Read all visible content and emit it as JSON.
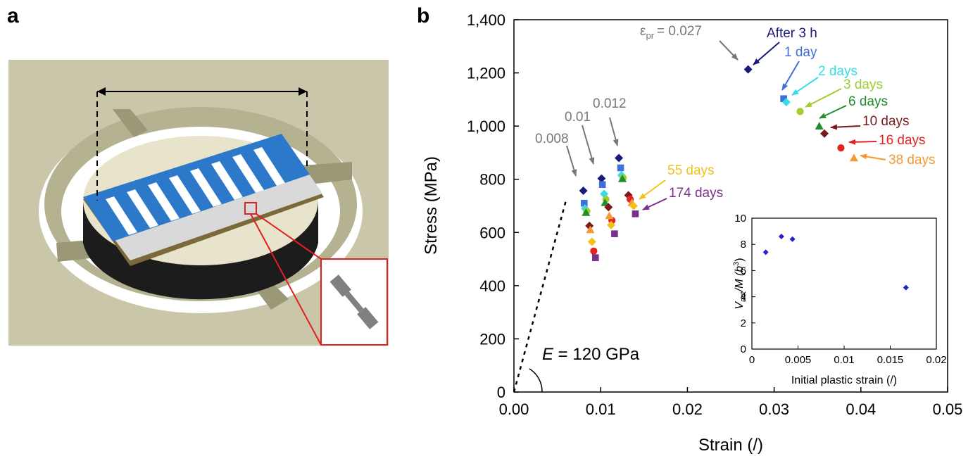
{
  "panels": {
    "a": "a",
    "b": "b"
  },
  "colors": {
    "after_3h": "#1a1a7a",
    "day1": "#3f6fd8",
    "days2": "#37dcea",
    "days3": "#9ccf2f",
    "days6": "#1e8f2a",
    "days10": "#7a1a1a",
    "days16": "#e42323",
    "days38": "#f39a32",
    "days55": "#f2c21b",
    "days174": "#7a2f8c",
    "gray": "#777777",
    "inset": "#2323c8"
  },
  "chart_data": [
    {
      "type": "scatter",
      "panel": "b",
      "xlabel": "Strain (/)",
      "ylabel": "Stress (MPa)",
      "xlim": [
        0,
        0.05
      ],
      "ylim": [
        0,
        1400
      ],
      "xticks": [
        "0.00",
        "0.01",
        "0.02",
        "0.03",
        "0.04",
        "0.05"
      ],
      "yticks": [
        "0",
        "200",
        "400",
        "600",
        "800",
        "1,000",
        "1,200",
        "1,400"
      ],
      "modulus_label": "E = 120 GPa",
      "modulus_E_label": "E",
      "modulus_value_label": " = 120 GPa",
      "elastic_line": {
        "E_GPa": 120,
        "x": [
          0,
          0.006
        ],
        "y": [
          0,
          720
        ]
      },
      "prestrain_labels": [
        {
          "text": "0.008",
          "x": 0.008
        },
        {
          "text": "0.01",
          "x": 0.01
        },
        {
          "text": "0.012",
          "x": 0.012
        },
        {
          "text": "= 0.027",
          "x": 0.027,
          "symbol": "ε",
          "subscript": "pr"
        }
      ],
      "series": [
        {
          "name": "After 3 h",
          "color_key": "after_3h",
          "marker": "diamond",
          "x": [
            0.008,
            0.0101,
            0.0121,
            0.027
          ],
          "y": [
            757,
            803,
            880,
            1213
          ]
        },
        {
          "name": "1 day",
          "color_key": "day1",
          "marker": "square",
          "x": [
            0.0081,
            0.0102,
            0.0123,
            0.0311
          ],
          "y": [
            710,
            780,
            843,
            1103
          ]
        },
        {
          "name": "2 days",
          "color_key": "days2",
          "marker": "diamond",
          "x": [
            0.0082,
            0.0104,
            0.0124,
            0.0314
          ],
          "y": [
            690,
            745,
            815,
            1090
          ]
        },
        {
          "name": "3 days",
          "color_key": "days3",
          "marker": "circle",
          "x": [
            0.0084,
            0.0106,
            0.0126,
            0.033
          ],
          "y": [
            680,
            725,
            805,
            1055
          ]
        },
        {
          "name": "6 days",
          "color_key": "days6",
          "marker": "triangle",
          "x": [
            0.0083,
            0.0105,
            0.0125,
            0.0352
          ],
          "y": [
            675,
            712,
            802,
            1000
          ]
        },
        {
          "name": "10 days",
          "color_key": "days10",
          "marker": "diamond",
          "x": [
            0.0087,
            0.0109,
            0.0132,
            0.0358
          ],
          "y": [
            625,
            695,
            740,
            972
          ]
        },
        {
          "name": "16 days",
          "color_key": "days16",
          "marker": "circle",
          "x": [
            0.0092,
            0.0113,
            0.0134,
            0.0377
          ],
          "y": [
            530,
            645,
            725,
            918
          ]
        },
        {
          "name": "38 days",
          "color_key": "days38",
          "marker": "triangle",
          "x": [
            0.0088,
            0.011,
            0.0136,
            0.0392
          ],
          "y": [
            610,
            663,
            712,
            880
          ]
        },
        {
          "name": "55 days",
          "color_key": "days55",
          "marker": "diamond",
          "x": [
            0.009,
            0.0112,
            0.0138
          ],
          "y": [
            565,
            628,
            700
          ]
        },
        {
          "name": "174 days",
          "color_key": "days174",
          "marker": "square",
          "x": [
            0.0094,
            0.0116,
            0.014
          ],
          "y": [
            505,
            595,
            670
          ]
        }
      ]
    },
    {
      "type": "scatter",
      "panel": "b-inset",
      "xlabel": "Initial plastic strain (/)",
      "ylabel": "V",
      "ylabel_sub": "act",
      "ylabel_rest": "/M (b",
      "ylabel_sup": "3",
      "ylabel_end": ")",
      "xlim": [
        0,
        0.02
      ],
      "ylim": [
        0,
        10
      ],
      "xticks": [
        "0",
        "0.005",
        "0.01",
        "0.015",
        "0.02"
      ],
      "yticks": [
        "0",
        "2",
        "4",
        "6",
        "8",
        "10"
      ],
      "series": [
        {
          "color_key": "inset",
          "marker": "diamond",
          "x": [
            0.0015,
            0.0032,
            0.0044,
            0.0167
          ],
          "y": [
            7.4,
            8.6,
            8.4,
            4.7
          ]
        }
      ]
    }
  ]
}
